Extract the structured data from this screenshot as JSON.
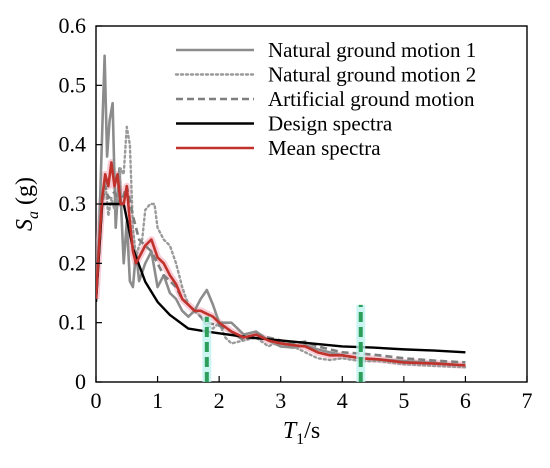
{
  "chart_data": {
    "type": "line",
    "xlabel": {
      "main": "T",
      "sub": "1",
      "unit": "/s"
    },
    "ylabel": {
      "main": "S",
      "sub": "a",
      "unit": " (g)"
    },
    "xlim": [
      0,
      7
    ],
    "ylim": [
      0,
      0.6
    ],
    "xticks": [
      "0",
      "1",
      "2",
      "3",
      "4",
      "5",
      "6",
      "7"
    ],
    "yticks": [
      "0",
      "0.1",
      "0.2",
      "0.3",
      "0.4",
      "0.5",
      "0.6"
    ],
    "grid": false,
    "legend_position": "top-right",
    "colors": {
      "natural1": "#8c8c8c",
      "natural2": "#9a9a9a",
      "artificial": "#7f7f7f",
      "design": "#000000",
      "mean": "#c0322b",
      "marker": "#2e9e5b"
    },
    "series": [
      {
        "name": "Natural ground motion 1",
        "style": "solid",
        "points": [
          [
            0,
            0.14
          ],
          [
            0.05,
            0.25
          ],
          [
            0.1,
            0.42
          ],
          [
            0.14,
            0.55
          ],
          [
            0.18,
            0.38
          ],
          [
            0.22,
            0.44
          ],
          [
            0.27,
            0.47
          ],
          [
            0.32,
            0.26
          ],
          [
            0.38,
            0.36
          ],
          [
            0.45,
            0.2
          ],
          [
            0.5,
            0.27
          ],
          [
            0.55,
            0.17
          ],
          [
            0.6,
            0.16
          ],
          [
            0.65,
            0.22
          ],
          [
            0.7,
            0.17
          ],
          [
            0.8,
            0.2
          ],
          [
            0.9,
            0.22
          ],
          [
            1.0,
            0.16
          ],
          [
            1.1,
            0.18
          ],
          [
            1.2,
            0.15
          ],
          [
            1.3,
            0.14
          ],
          [
            1.4,
            0.12
          ],
          [
            1.5,
            0.11
          ],
          [
            1.6,
            0.12
          ],
          [
            1.7,
            0.14
          ],
          [
            1.8,
            0.155
          ],
          [
            1.9,
            0.13
          ],
          [
            2.0,
            0.1
          ],
          [
            2.2,
            0.1
          ],
          [
            2.4,
            0.08
          ],
          [
            2.6,
            0.085
          ],
          [
            2.8,
            0.07
          ],
          [
            3.0,
            0.06
          ],
          [
            3.2,
            0.058
          ],
          [
            3.4,
            0.062
          ],
          [
            3.6,
            0.055
          ],
          [
            3.8,
            0.05
          ],
          [
            4.0,
            0.045
          ],
          [
            4.3,
            0.04
          ],
          [
            4.6,
            0.038
          ],
          [
            5.0,
            0.035
          ],
          [
            5.5,
            0.032
          ],
          [
            6.0,
            0.028
          ]
        ]
      },
      {
        "name": "Natural ground motion 2",
        "style": "dotted",
        "points": [
          [
            0,
            0.15
          ],
          [
            0.05,
            0.22
          ],
          [
            0.1,
            0.3
          ],
          [
            0.15,
            0.34
          ],
          [
            0.2,
            0.28
          ],
          [
            0.25,
            0.31
          ],
          [
            0.3,
            0.29
          ],
          [
            0.35,
            0.3
          ],
          [
            0.4,
            0.36
          ],
          [
            0.45,
            0.35
          ],
          [
            0.5,
            0.43
          ],
          [
            0.55,
            0.4
          ],
          [
            0.6,
            0.26
          ],
          [
            0.65,
            0.21
          ],
          [
            0.7,
            0.23
          ],
          [
            0.75,
            0.24
          ],
          [
            0.8,
            0.29
          ],
          [
            0.88,
            0.3
          ],
          [
            0.95,
            0.3
          ],
          [
            1.0,
            0.26
          ],
          [
            1.1,
            0.24
          ],
          [
            1.2,
            0.23
          ],
          [
            1.3,
            0.2
          ],
          [
            1.4,
            0.16
          ],
          [
            1.5,
            0.13
          ],
          [
            1.6,
            0.12
          ],
          [
            1.7,
            0.11
          ],
          [
            1.8,
            0.095
          ],
          [
            1.9,
            0.09
          ],
          [
            2.0,
            0.1
          ],
          [
            2.1,
            0.075
          ],
          [
            2.2,
            0.065
          ],
          [
            2.4,
            0.07
          ],
          [
            2.6,
            0.075
          ],
          [
            2.8,
            0.06
          ],
          [
            3.0,
            0.07
          ],
          [
            3.2,
            0.06
          ],
          [
            3.4,
            0.05
          ],
          [
            3.6,
            0.04
          ],
          [
            3.8,
            0.037
          ],
          [
            4.0,
            0.04
          ],
          [
            4.3,
            0.035
          ],
          [
            4.6,
            0.035
          ],
          [
            5.0,
            0.03
          ],
          [
            5.5,
            0.027
          ],
          [
            6.0,
            0.025
          ]
        ]
      },
      {
        "name": "Artificial ground motion",
        "style": "dashed",
        "points": [
          [
            0,
            0.14
          ],
          [
            0.05,
            0.22
          ],
          [
            0.1,
            0.3
          ],
          [
            0.15,
            0.33
          ],
          [
            0.2,
            0.31
          ],
          [
            0.3,
            0.32
          ],
          [
            0.4,
            0.3
          ],
          [
            0.5,
            0.33
          ],
          [
            0.6,
            0.28
          ],
          [
            0.7,
            0.24
          ],
          [
            0.8,
            0.23
          ],
          [
            0.9,
            0.22
          ],
          [
            1.0,
            0.2
          ],
          [
            1.1,
            0.18
          ],
          [
            1.2,
            0.17
          ],
          [
            1.3,
            0.16
          ],
          [
            1.4,
            0.14
          ],
          [
            1.5,
            0.13
          ],
          [
            1.6,
            0.12
          ],
          [
            1.7,
            0.11
          ],
          [
            1.8,
            0.1
          ],
          [
            2.0,
            0.095
          ],
          [
            2.2,
            0.085
          ],
          [
            2.4,
            0.07
          ],
          [
            2.6,
            0.08
          ],
          [
            2.8,
            0.075
          ],
          [
            3.0,
            0.07
          ],
          [
            3.2,
            0.065
          ],
          [
            3.4,
            0.068
          ],
          [
            3.6,
            0.06
          ],
          [
            3.8,
            0.055
          ],
          [
            4.0,
            0.05
          ],
          [
            4.3,
            0.048
          ],
          [
            4.6,
            0.045
          ],
          [
            5.0,
            0.04
          ],
          [
            5.5,
            0.036
          ],
          [
            6.0,
            0.033
          ]
        ]
      },
      {
        "name": "Design spectra",
        "style": "solid",
        "points": [
          [
            0,
            0.135
          ],
          [
            0.1,
            0.3
          ],
          [
            0.45,
            0.3
          ],
          [
            0.6,
            0.225
          ],
          [
            0.8,
            0.169
          ],
          [
            1.0,
            0.135
          ],
          [
            1.2,
            0.113
          ],
          [
            1.5,
            0.09
          ],
          [
            1.8,
            0.085
          ],
          [
            2.0,
            0.082
          ],
          [
            2.5,
            0.075
          ],
          [
            3.0,
            0.07
          ],
          [
            3.5,
            0.065
          ],
          [
            4.0,
            0.06
          ],
          [
            4.5,
            0.058
          ],
          [
            5.0,
            0.055
          ],
          [
            5.5,
            0.053
          ],
          [
            6.0,
            0.05
          ]
        ]
      },
      {
        "name": "Mean spectra",
        "style": "solid",
        "points": [
          [
            0,
            0.14
          ],
          [
            0.05,
            0.23
          ],
          [
            0.1,
            0.31
          ],
          [
            0.15,
            0.35
          ],
          [
            0.2,
            0.33
          ],
          [
            0.25,
            0.37
          ],
          [
            0.3,
            0.33
          ],
          [
            0.35,
            0.35
          ],
          [
            0.4,
            0.3
          ],
          [
            0.45,
            0.3
          ],
          [
            0.5,
            0.33
          ],
          [
            0.55,
            0.27
          ],
          [
            0.6,
            0.22
          ],
          [
            0.65,
            0.2
          ],
          [
            0.7,
            0.21
          ],
          [
            0.75,
            0.22
          ],
          [
            0.8,
            0.23
          ],
          [
            0.9,
            0.24
          ],
          [
            1.0,
            0.21
          ],
          [
            1.1,
            0.2
          ],
          [
            1.2,
            0.18
          ],
          [
            1.3,
            0.165
          ],
          [
            1.4,
            0.14
          ],
          [
            1.5,
            0.13
          ],
          [
            1.6,
            0.12
          ],
          [
            1.7,
            0.12
          ],
          [
            1.8,
            0.115
          ],
          [
            1.9,
            0.11
          ],
          [
            2.0,
            0.1
          ],
          [
            2.2,
            0.085
          ],
          [
            2.4,
            0.075
          ],
          [
            2.6,
            0.08
          ],
          [
            2.8,
            0.07
          ],
          [
            3.0,
            0.065
          ],
          [
            3.2,
            0.062
          ],
          [
            3.4,
            0.06
          ],
          [
            3.6,
            0.05
          ],
          [
            3.8,
            0.045
          ],
          [
            4.0,
            0.045
          ],
          [
            4.3,
            0.04
          ],
          [
            4.6,
            0.038
          ],
          [
            5.0,
            0.033
          ],
          [
            5.5,
            0.031
          ],
          [
            6.0,
            0.028
          ]
        ]
      }
    ],
    "markers": [
      {
        "x": 1.8,
        "y_from": 0,
        "y_to": 0.11
      },
      {
        "x": 4.3,
        "y_from": 0,
        "y_to": 0.13
      }
    ]
  }
}
